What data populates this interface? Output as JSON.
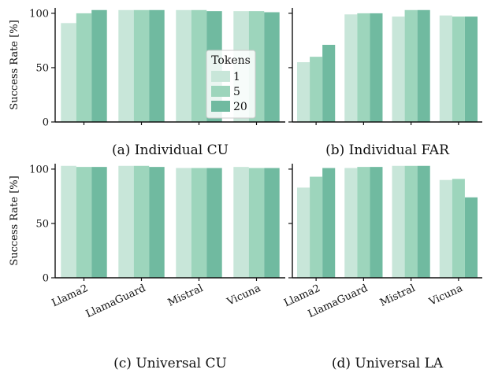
{
  "chart_data": [
    {
      "type": "bar",
      "caption": "(a) Individual CU",
      "ylabel": "Success Rate [%]",
      "ylim": [
        0,
        105
      ],
      "yticks": [
        0,
        50,
        100
      ],
      "categories": [
        "Llama2",
        "LlamaGuard",
        "Mistral",
        "Vicuna"
      ],
      "show_category_labels": false,
      "show_y_tick_labels": true,
      "series": [
        {
          "name": "1",
          "values": [
            91,
            103,
            103,
            102
          ]
        },
        {
          "name": "5",
          "values": [
            100,
            103,
            103,
            102
          ]
        },
        {
          "name": "20",
          "values": [
            103,
            103,
            102,
            101
          ]
        }
      ],
      "legend": {
        "title": "Tokens",
        "placement": "lower-right"
      }
    },
    {
      "type": "bar",
      "caption": "(b) Individual FAR",
      "ylabel": "",
      "ylim": [
        0,
        105
      ],
      "yticks": [
        0,
        50,
        100
      ],
      "categories": [
        "Llama2",
        "LlamaGuard",
        "Mistral",
        "Vicuna"
      ],
      "show_category_labels": false,
      "show_y_tick_labels": false,
      "series": [
        {
          "name": "1",
          "values": [
            55,
            99,
            97,
            98
          ]
        },
        {
          "name": "5",
          "values": [
            60,
            100,
            103,
            97
          ]
        },
        {
          "name": "20",
          "values": [
            71,
            100,
            103,
            97
          ]
        }
      ]
    },
    {
      "type": "bar",
      "caption": "(c) Universal CU",
      "ylabel": "Success Rate [%]",
      "ylim": [
        0,
        105
      ],
      "yticks": [
        0,
        50,
        100
      ],
      "categories": [
        "Llama2",
        "LlamaGuard",
        "Mistral",
        "Vicuna"
      ],
      "show_category_labels": true,
      "show_y_tick_labels": true,
      "series": [
        {
          "name": "1",
          "values": [
            103,
            103,
            101,
            102
          ]
        },
        {
          "name": "5",
          "values": [
            102,
            103,
            101,
            101
          ]
        },
        {
          "name": "20",
          "values": [
            102,
            102,
            101,
            101
          ]
        }
      ]
    },
    {
      "type": "bar",
      "caption": "(d) Universal LA",
      "ylabel": "",
      "ylim": [
        0,
        105
      ],
      "yticks": [
        0,
        50,
        100
      ],
      "categories": [
        "Llama2",
        "LlamaGuard",
        "Mistral",
        "Vicuna"
      ],
      "show_category_labels": true,
      "show_y_tick_labels": false,
      "series": [
        {
          "name": "1",
          "values": [
            83,
            101,
            103,
            90
          ]
        },
        {
          "name": "5",
          "values": [
            93,
            102,
            103,
            91
          ]
        },
        {
          "name": "20",
          "values": [
            101,
            102,
            103,
            74
          ]
        }
      ]
    }
  ],
  "colors": {
    "series": [
      "#c8e6d9",
      "#9dd5bc",
      "#70baa0"
    ],
    "axis": "#111111"
  }
}
